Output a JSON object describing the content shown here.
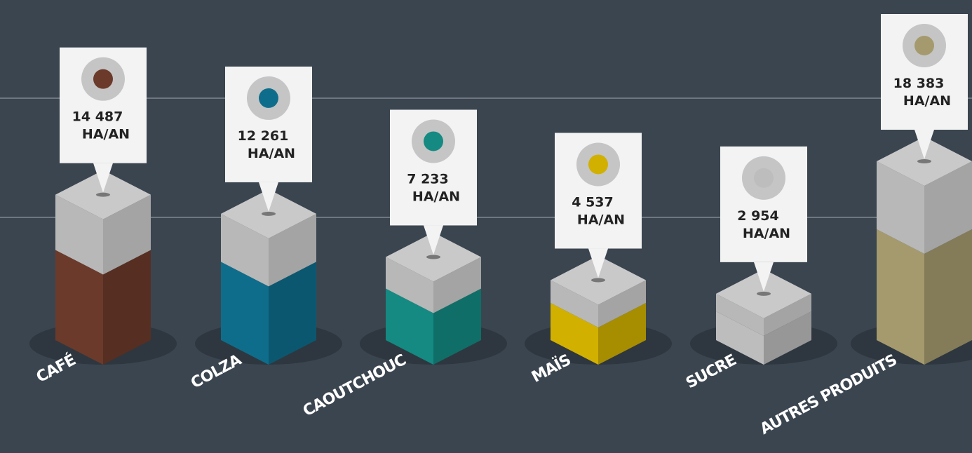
{
  "chart_data": {
    "type": "bar",
    "categories": [
      "CAFÉ",
      "COLZA",
      "CAOUTCHOUC",
      "MAÏS",
      "SUCRE",
      "AUTRES PRODUITS"
    ],
    "values": [
      14487,
      12261,
      7233,
      4537,
      2954,
      18383
    ],
    "value_labels": [
      "14 487",
      "12 261",
      "7 233",
      "4 537",
      "2 954",
      "18 383"
    ],
    "unit": "HA/AN",
    "colors": [
      "#6b3a2a",
      "#0f6d8c",
      "#148a82",
      "#d1b000",
      "#bdbdbd",
      "#a59a6e"
    ]
  }
}
